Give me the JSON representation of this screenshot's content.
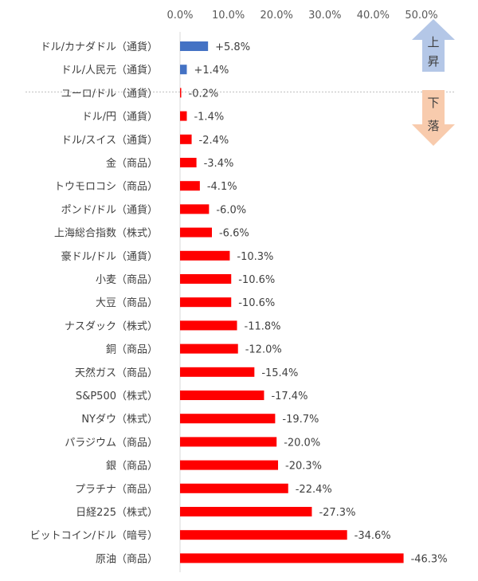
{
  "chart_data": {
    "type": "bar",
    "orientation": "horizontal",
    "title": "",
    "xlabel": "",
    "ylabel": "",
    "xlim": [
      0,
      50
    ],
    "x_ticks": [
      "0.0%",
      "10.0%",
      "20.0%",
      "30.0%",
      "40.0%",
      "50.0%"
    ],
    "x_axis_position": "top",
    "grid": false,
    "categories": [
      "ドル/カナダドル（通貨）",
      "ドル/人民元（通貨）",
      "ユーロ/ドル（通貨）",
      "ドル/円（通貨）",
      "ドル/スイス（通貨）",
      "金（商品）",
      "トウモロコシ（商品）",
      "ポンド/ドル（通貨）",
      "上海総合指数（株式）",
      "豪ドル/ドル（通貨）",
      "小麦（商品）",
      "大豆（商品）",
      "ナスダック（株式）",
      "銅（商品）",
      "天然ガス（商品）",
      "S&P500（株式）",
      "NYダウ（株式）",
      "パラジウム（商品）",
      "銀（商品）",
      "プラチナ（商品）",
      "日経225（株式）",
      "ビットコイン/ドル（暗号）",
      "原油（商品）"
    ],
    "values": [
      5.8,
      1.4,
      -0.2,
      -1.4,
      -2.4,
      -3.4,
      -4.1,
      -6.0,
      -6.6,
      -10.3,
      -10.6,
      -10.6,
      -11.8,
      -12.0,
      -15.4,
      -17.4,
      -19.7,
      -20.0,
      -20.3,
      -22.4,
      -27.3,
      -34.6,
      -46.3
    ],
    "value_labels": [
      "+5.8%",
      "+1.4%",
      "-0.2%",
      "-1.4%",
      "-2.4%",
      "-3.4%",
      "-4.1%",
      "-6.0%",
      "-6.6%",
      "-10.3%",
      "-10.6%",
      "-10.6%",
      "-11.8%",
      "-12.0%",
      "-15.4%",
      "-17.4%",
      "-19.7%",
      "-20.0%",
      "-20.3%",
      "-22.4%",
      "-27.3%",
      "-34.6%",
      "-46.3%"
    ],
    "bar_magnitude": "absolute",
    "colors": {
      "up": "#4472C4",
      "down": "#FF0000"
    },
    "annotations": {
      "up": {
        "chars": [
          "上",
          "昇"
        ],
        "color": "#B4C7E7"
      },
      "down": {
        "chars": [
          "下",
          "落"
        ],
        "color": "#F8CBAD"
      }
    }
  }
}
